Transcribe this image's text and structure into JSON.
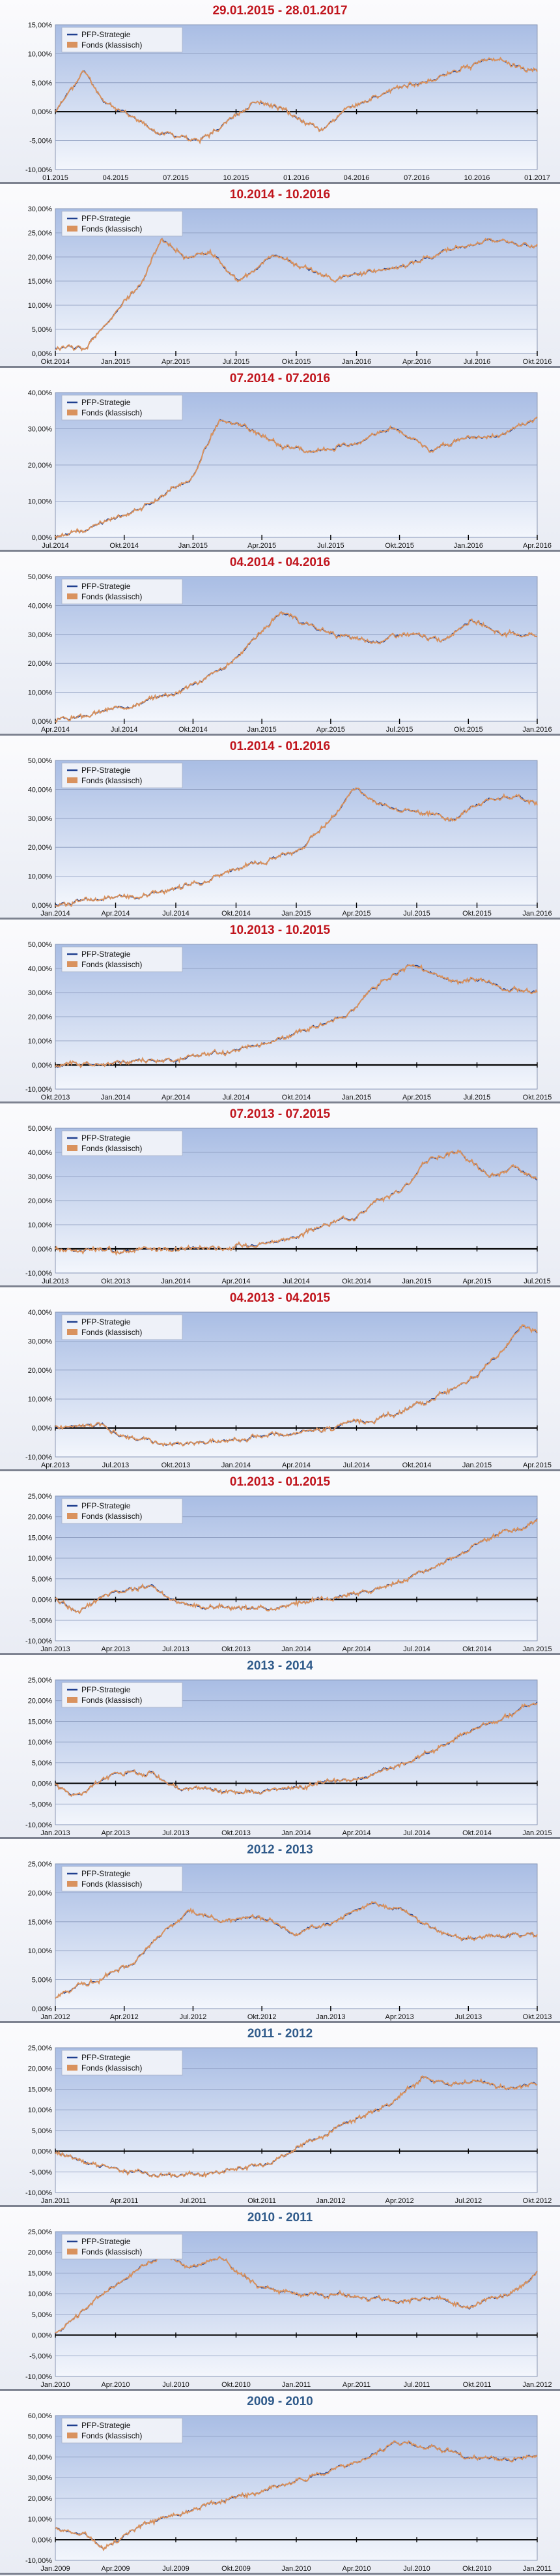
{
  "colors": {
    "title_red": "#c0141c",
    "title_blue": "#2f5a8a",
    "series_a": "#1f3f8f",
    "series_b": "#d9925e",
    "plot_top": "#a9bde4",
    "plot_bottom": "#f3f6fc",
    "zero_line": "#000000"
  },
  "chart_data": [
    {
      "type": "line",
      "title": "29.01.2015 - 28.01.2017",
      "title_color": "red",
      "y_ticks": [
        "-10,00%",
        "-5,00%",
        "0,00%",
        "5,00%",
        "10,00%",
        "15,00%"
      ],
      "ylim": [
        -10,
        15
      ],
      "x_ticks": [
        "01.2015",
        "04.2015",
        "07.2015",
        "10.2015",
        "01.2016",
        "04.2016",
        "07.2016",
        "10.2016",
        "01.2017"
      ],
      "legend": [
        "PFP-Strategie",
        "Fonds (klassisch)"
      ],
      "key_points": [
        [
          0,
          0
        ],
        [
          0.06,
          7
        ],
        [
          0.1,
          2
        ],
        [
          0.2,
          -3
        ],
        [
          0.3,
          -5
        ],
        [
          0.35,
          -2
        ],
        [
          0.42,
          2
        ],
        [
          0.5,
          -1
        ],
        [
          0.55,
          -3
        ],
        [
          0.6,
          0
        ],
        [
          0.7,
          4
        ],
        [
          0.8,
          6
        ],
        [
          0.9,
          9
        ],
        [
          0.96,
          8
        ],
        [
          1,
          7
        ]
      ],
      "seed": 11
    },
    {
      "type": "line",
      "title": "10.2014 - 10.2016",
      "title_color": "red",
      "y_ticks": [
        "0,00%",
        "5,00%",
        "10,00%",
        "15,00%",
        "20,00%",
        "25,00%",
        "30,00%"
      ],
      "ylim": [
        0,
        30
      ],
      "x_ticks": [
        "Okt.2014",
        "Jan.2015",
        "Apr.2015",
        "Jul.2015",
        "Okt.2015",
        "Jan.2016",
        "Apr.2016",
        "Jul.2016",
        "Okt.2016"
      ],
      "legend": [
        "PFP-Strategie",
        "Fonds (klassisch)"
      ],
      "key_points": [
        [
          0,
          1
        ],
        [
          0.06,
          1
        ],
        [
          0.12,
          8
        ],
        [
          0.18,
          15
        ],
        [
          0.22,
          24
        ],
        [
          0.27,
          20
        ],
        [
          0.32,
          21
        ],
        [
          0.38,
          15
        ],
        [
          0.45,
          20
        ],
        [
          0.52,
          18
        ],
        [
          0.58,
          15
        ],
        [
          0.65,
          17
        ],
        [
          0.72,
          18
        ],
        [
          0.8,
          21
        ],
        [
          0.9,
          23
        ],
        [
          1,
          22
        ]
      ],
      "seed": 12
    },
    {
      "type": "line",
      "title": "07.2014 - 07.2016",
      "title_color": "red",
      "y_ticks": [
        "0,00%",
        "10,00%",
        "20,00%",
        "30,00%",
        "40,00%"
      ],
      "ylim": [
        0,
        40
      ],
      "x_ticks": [
        "Jul.2014",
        "Okt.2014",
        "Jan.2015",
        "Apr.2015",
        "Jul.2015",
        "Okt.2015",
        "Jan.2016",
        "Apr.2016"
      ],
      "legend": [
        "PFP-Strategie",
        "Fonds (klassisch)"
      ],
      "key_points": [
        [
          0,
          0
        ],
        [
          0.1,
          4
        ],
        [
          0.2,
          10
        ],
        [
          0.28,
          16
        ],
        [
          0.34,
          32
        ],
        [
          0.4,
          30
        ],
        [
          0.48,
          25
        ],
        [
          0.55,
          23
        ],
        [
          0.62,
          26
        ],
        [
          0.7,
          30
        ],
        [
          0.78,
          24
        ],
        [
          0.85,
          27
        ],
        [
          0.92,
          28
        ],
        [
          1,
          33
        ]
      ],
      "seed": 13
    },
    {
      "type": "line",
      "title": "04.2014 - 04.2016",
      "title_color": "red",
      "y_ticks": [
        "0,00%",
        "10,00%",
        "20,00%",
        "30,00%",
        "40,00%",
        "50,00%"
      ],
      "ylim": [
        0,
        50
      ],
      "x_ticks": [
        "Apr.2014",
        "Jul.2014",
        "Okt.2014",
        "Jan.2015",
        "Apr.2015",
        "Jul.2015",
        "Okt.2015",
        "Jan.2016"
      ],
      "legend": [
        "PFP-Strategie",
        "Fonds (klassisch)"
      ],
      "key_points": [
        [
          0,
          0
        ],
        [
          0.12,
          4
        ],
        [
          0.25,
          10
        ],
        [
          0.35,
          18
        ],
        [
          0.42,
          30
        ],
        [
          0.47,
          38
        ],
        [
          0.52,
          33
        ],
        [
          0.58,
          30
        ],
        [
          0.65,
          27
        ],
        [
          0.72,
          30
        ],
        [
          0.8,
          28
        ],
        [
          0.86,
          35
        ],
        [
          0.93,
          30
        ],
        [
          1,
          30
        ]
      ],
      "seed": 14
    },
    {
      "type": "line",
      "title": "01.2014 - 01.2016",
      "title_color": "red",
      "y_ticks": [
        "0,00%",
        "10,00%",
        "20,00%",
        "30,00%",
        "40,00%",
        "50,00%"
      ],
      "ylim": [
        0,
        50
      ],
      "x_ticks": [
        "Jan.2014",
        "Apr.2014",
        "Jul.2014",
        "Okt.2014",
        "Jan.2015",
        "Apr.2015",
        "Jul.2015",
        "Okt.2015",
        "Jan.2016"
      ],
      "legend": [
        "PFP-Strategie",
        "Fonds (klassisch)"
      ],
      "key_points": [
        [
          0,
          0
        ],
        [
          0.1,
          2
        ],
        [
          0.2,
          4
        ],
        [
          0.3,
          8
        ],
        [
          0.4,
          14
        ],
        [
          0.5,
          18
        ],
        [
          0.56,
          28
        ],
        [
          0.62,
          40
        ],
        [
          0.68,
          35
        ],
        [
          0.75,
          32
        ],
        [
          0.82,
          30
        ],
        [
          0.88,
          35
        ],
        [
          0.93,
          38
        ],
        [
          1,
          35
        ]
      ],
      "seed": 15
    },
    {
      "type": "line",
      "title": "10.2013 - 10.2015",
      "title_color": "red",
      "y_ticks": [
        "-10,00%",
        "0,00%",
        "10,00%",
        "20,00%",
        "30,00%",
        "40,00%",
        "50,00%"
      ],
      "ylim": [
        -10,
        50
      ],
      "x_ticks": [
        "Okt.2013",
        "Jan.2014",
        "Apr.2014",
        "Jul.2014",
        "Okt.2014",
        "Jan.2015",
        "Apr.2015",
        "Jul.2015",
        "Okt.2015"
      ],
      "legend": [
        "PFP-Strategie",
        "Fonds (klassisch)"
      ],
      "key_points": [
        [
          0,
          0
        ],
        [
          0.12,
          1
        ],
        [
          0.25,
          2
        ],
        [
          0.4,
          7
        ],
        [
          0.5,
          12
        ],
        [
          0.6,
          20
        ],
        [
          0.68,
          35
        ],
        [
          0.74,
          42
        ],
        [
          0.8,
          36
        ],
        [
          0.88,
          35
        ],
        [
          0.94,
          32
        ],
        [
          1,
          30
        ]
      ],
      "seed": 16
    },
    {
      "type": "line",
      "title": "07.2013 - 07.2015",
      "title_color": "red",
      "y_ticks": [
        "-10,00%",
        "0,00%",
        "10,00%",
        "20,00%",
        "30,00%",
        "40,00%",
        "50,00%"
      ],
      "ylim": [
        -10,
        50
      ],
      "x_ticks": [
        "Jul.2013",
        "Okt.2013",
        "Jan.2014",
        "Apr.2014",
        "Jul.2014",
        "Okt.2014",
        "Jan.2015",
        "Apr.2015",
        "Jul.2015"
      ],
      "legend": [
        "PFP-Strategie",
        "Fonds (klassisch)"
      ],
      "key_points": [
        [
          0,
          0
        ],
        [
          0.12,
          -1
        ],
        [
          0.25,
          0
        ],
        [
          0.38,
          1
        ],
        [
          0.5,
          5
        ],
        [
          0.62,
          14
        ],
        [
          0.72,
          25
        ],
        [
          0.78,
          38
        ],
        [
          0.84,
          40
        ],
        [
          0.9,
          30
        ],
        [
          0.95,
          33
        ],
        [
          1,
          28
        ]
      ],
      "seed": 17
    },
    {
      "type": "line",
      "title": "04.2013 - 04.2015",
      "title_color": "red",
      "y_ticks": [
        "-10,00%",
        "0,00%",
        "10,00%",
        "20,00%",
        "30,00%",
        "40,00%"
      ],
      "ylim": [
        -10,
        40
      ],
      "x_ticks": [
        "Apr.2013",
        "Jul.2013",
        "Okt.2013",
        "Jan.2014",
        "Apr.2014",
        "Jul.2014",
        "Okt.2014",
        "Jan.2015",
        "Apr.2015"
      ],
      "legend": [
        "PFP-Strategie",
        "Fonds (klassisch)"
      ],
      "key_points": [
        [
          0,
          0
        ],
        [
          0.1,
          1
        ],
        [
          0.15,
          -3
        ],
        [
          0.25,
          -6
        ],
        [
          0.35,
          -5
        ],
        [
          0.45,
          -3
        ],
        [
          0.55,
          -1
        ],
        [
          0.65,
          2
        ],
        [
          0.75,
          8
        ],
        [
          0.85,
          15
        ],
        [
          0.92,
          25
        ],
        [
          0.97,
          35
        ],
        [
          1,
          33
        ]
      ],
      "seed": 18
    },
    {
      "type": "line",
      "title": "01.2013 - 01.2015",
      "title_color": "red",
      "y_ticks": [
        "-10,00%",
        "-5,00%",
        "0,00%",
        "5,00%",
        "10,00%",
        "15,00%",
        "20,00%",
        "25,00%"
      ],
      "ylim": [
        -10,
        25
      ],
      "x_ticks": [
        "Jan.2013",
        "Apr.2013",
        "Jul.2013",
        "Okt.2013",
        "Jan.2014",
        "Apr.2014",
        "Jul.2014",
        "Okt.2014",
        "Jan.2015"
      ],
      "legend": [
        "PFP-Strategie",
        "Fonds (klassisch)"
      ],
      "key_points": [
        [
          0,
          0
        ],
        [
          0.05,
          -3
        ],
        [
          0.12,
          2
        ],
        [
          0.2,
          3
        ],
        [
          0.25,
          -1
        ],
        [
          0.35,
          -2
        ],
        [
          0.45,
          -2
        ],
        [
          0.55,
          0
        ],
        [
          0.65,
          2
        ],
        [
          0.75,
          6
        ],
        [
          0.85,
          12
        ],
        [
          0.93,
          16
        ],
        [
          1,
          19
        ]
      ],
      "seed": 19
    },
    {
      "type": "line",
      "title": "2013 - 2014",
      "title_color": "blue",
      "y_ticks": [
        "-10,00%",
        "-5,00%",
        "0,00%",
        "5,00%",
        "10,00%",
        "15,00%",
        "20,00%",
        "25,00%"
      ],
      "ylim": [
        -10,
        25
      ],
      "x_ticks": [
        "Jan.2013",
        "Apr.2013",
        "Jul.2013",
        "Okt.2013",
        "Jan.2014",
        "Apr.2014",
        "Jul.2014",
        "Okt.2014",
        "Jan.2015"
      ],
      "legend": [
        "PFP-Strategie",
        "Fonds (klassisch)"
      ],
      "key_points": [
        [
          0,
          0
        ],
        [
          0.05,
          -3
        ],
        [
          0.12,
          2
        ],
        [
          0.2,
          3
        ],
        [
          0.25,
          -1
        ],
        [
          0.35,
          -2
        ],
        [
          0.45,
          -2
        ],
        [
          0.55,
          0
        ],
        [
          0.65,
          2
        ],
        [
          0.75,
          6
        ],
        [
          0.85,
          12
        ],
        [
          0.93,
          16
        ],
        [
          1,
          20
        ]
      ],
      "seed": 20
    },
    {
      "type": "line",
      "title": "2012 - 2013",
      "title_color": "blue",
      "y_ticks": [
        "0,00%",
        "5,00%",
        "10,00%",
        "15,00%",
        "20,00%",
        "25,00%"
      ],
      "ylim": [
        0,
        25
      ],
      "x_ticks": [
        "Jan.2012",
        "Apr.2012",
        "Jul.2012",
        "Okt.2012",
        "Jan.2013",
        "Apr.2013",
        "Jul.2013",
        "Okt.2013"
      ],
      "legend": [
        "PFP-Strategie",
        "Fonds (klassisch)"
      ],
      "key_points": [
        [
          0,
          2
        ],
        [
          0.08,
          5
        ],
        [
          0.16,
          8
        ],
        [
          0.22,
          13
        ],
        [
          0.28,
          17
        ],
        [
          0.35,
          15
        ],
        [
          0.42,
          16
        ],
        [
          0.5,
          13
        ],
        [
          0.58,
          15
        ],
        [
          0.66,
          18
        ],
        [
          0.72,
          17
        ],
        [
          0.78,
          14
        ],
        [
          0.86,
          12
        ],
        [
          0.93,
          13
        ],
        [
          1,
          13
        ]
      ],
      "seed": 21
    },
    {
      "type": "line",
      "title": "2011 - 2012",
      "title_color": "blue",
      "y_ticks": [
        "-10,00%",
        "-5,00%",
        "0,00%",
        "5,00%",
        "10,00%",
        "15,00%",
        "20,00%",
        "25,00%"
      ],
      "ylim": [
        -10,
        25
      ],
      "x_ticks": [
        "Jan.2011",
        "Apr.2011",
        "Jul.2011",
        "Okt.2011",
        "Jan.2012",
        "Apr.2012",
        "Jul.2012",
        "Okt.2012"
      ],
      "legend": [
        "PFP-Strategie",
        "Fonds (klassisch)"
      ],
      "key_points": [
        [
          0,
          0
        ],
        [
          0.08,
          -3
        ],
        [
          0.16,
          -5
        ],
        [
          0.25,
          -6
        ],
        [
          0.35,
          -5
        ],
        [
          0.45,
          -3
        ],
        [
          0.52,
          2
        ],
        [
          0.6,
          6
        ],
        [
          0.7,
          12
        ],
        [
          0.76,
          18
        ],
        [
          0.82,
          16
        ],
        [
          0.88,
          17
        ],
        [
          0.94,
          15
        ],
        [
          1,
          16
        ]
      ],
      "seed": 22
    },
    {
      "type": "line",
      "title": "2010 - 2011",
      "title_color": "blue",
      "y_ticks": [
        "-10,00%",
        "-5,00%",
        "0,00%",
        "5,00%",
        "10,00%",
        "15,00%",
        "20,00%",
        "25,00%"
      ],
      "ylim": [
        -10,
        25
      ],
      "x_ticks": [
        "Jan.2010",
        "Apr.2010",
        "Jul.2010",
        "Okt.2010",
        "Jan.2011",
        "Apr.2011",
        "Jul.2011",
        "Okt.2011",
        "Jan.2012"
      ],
      "legend": [
        "PFP-Strategie",
        "Fonds (klassisch)"
      ],
      "key_points": [
        [
          0,
          0
        ],
        [
          0.08,
          8
        ],
        [
          0.16,
          15
        ],
        [
          0.22,
          20
        ],
        [
          0.28,
          16
        ],
        [
          0.34,
          19
        ],
        [
          0.42,
          12
        ],
        [
          0.5,
          10
        ],
        [
          0.6,
          10
        ],
        [
          0.7,
          8
        ],
        [
          0.78,
          9
        ],
        [
          0.86,
          7
        ],
        [
          0.94,
          10
        ],
        [
          1,
          15
        ]
      ],
      "seed": 23
    },
    {
      "type": "line",
      "title": "2009 - 2010",
      "title_color": "blue",
      "y_ticks": [
        "-10,00%",
        "0,00%",
        "10,00%",
        "20,00%",
        "30,00%",
        "40,00%",
        "50,00%",
        "60,00%"
      ],
      "ylim": [
        -10,
        60
      ],
      "x_ticks": [
        "Jan.2009",
        "Apr.2009",
        "Jul.2009",
        "Okt.2009",
        "Jan.2010",
        "Apr.2010",
        "Jul.2010",
        "Okt.2010",
        "Jan.2011"
      ],
      "legend": [
        "PFP-Strategie",
        "Fonds (klassisch)"
      ],
      "key_points": [
        [
          0,
          5
        ],
        [
          0.06,
          3
        ],
        [
          0.1,
          -5
        ],
        [
          0.18,
          8
        ],
        [
          0.3,
          15
        ],
        [
          0.45,
          25
        ],
        [
          0.6,
          35
        ],
        [
          0.7,
          46
        ],
        [
          0.78,
          45
        ],
        [
          0.86,
          40
        ],
        [
          0.94,
          38
        ],
        [
          1,
          40
        ]
      ],
      "seed": 24
    }
  ]
}
